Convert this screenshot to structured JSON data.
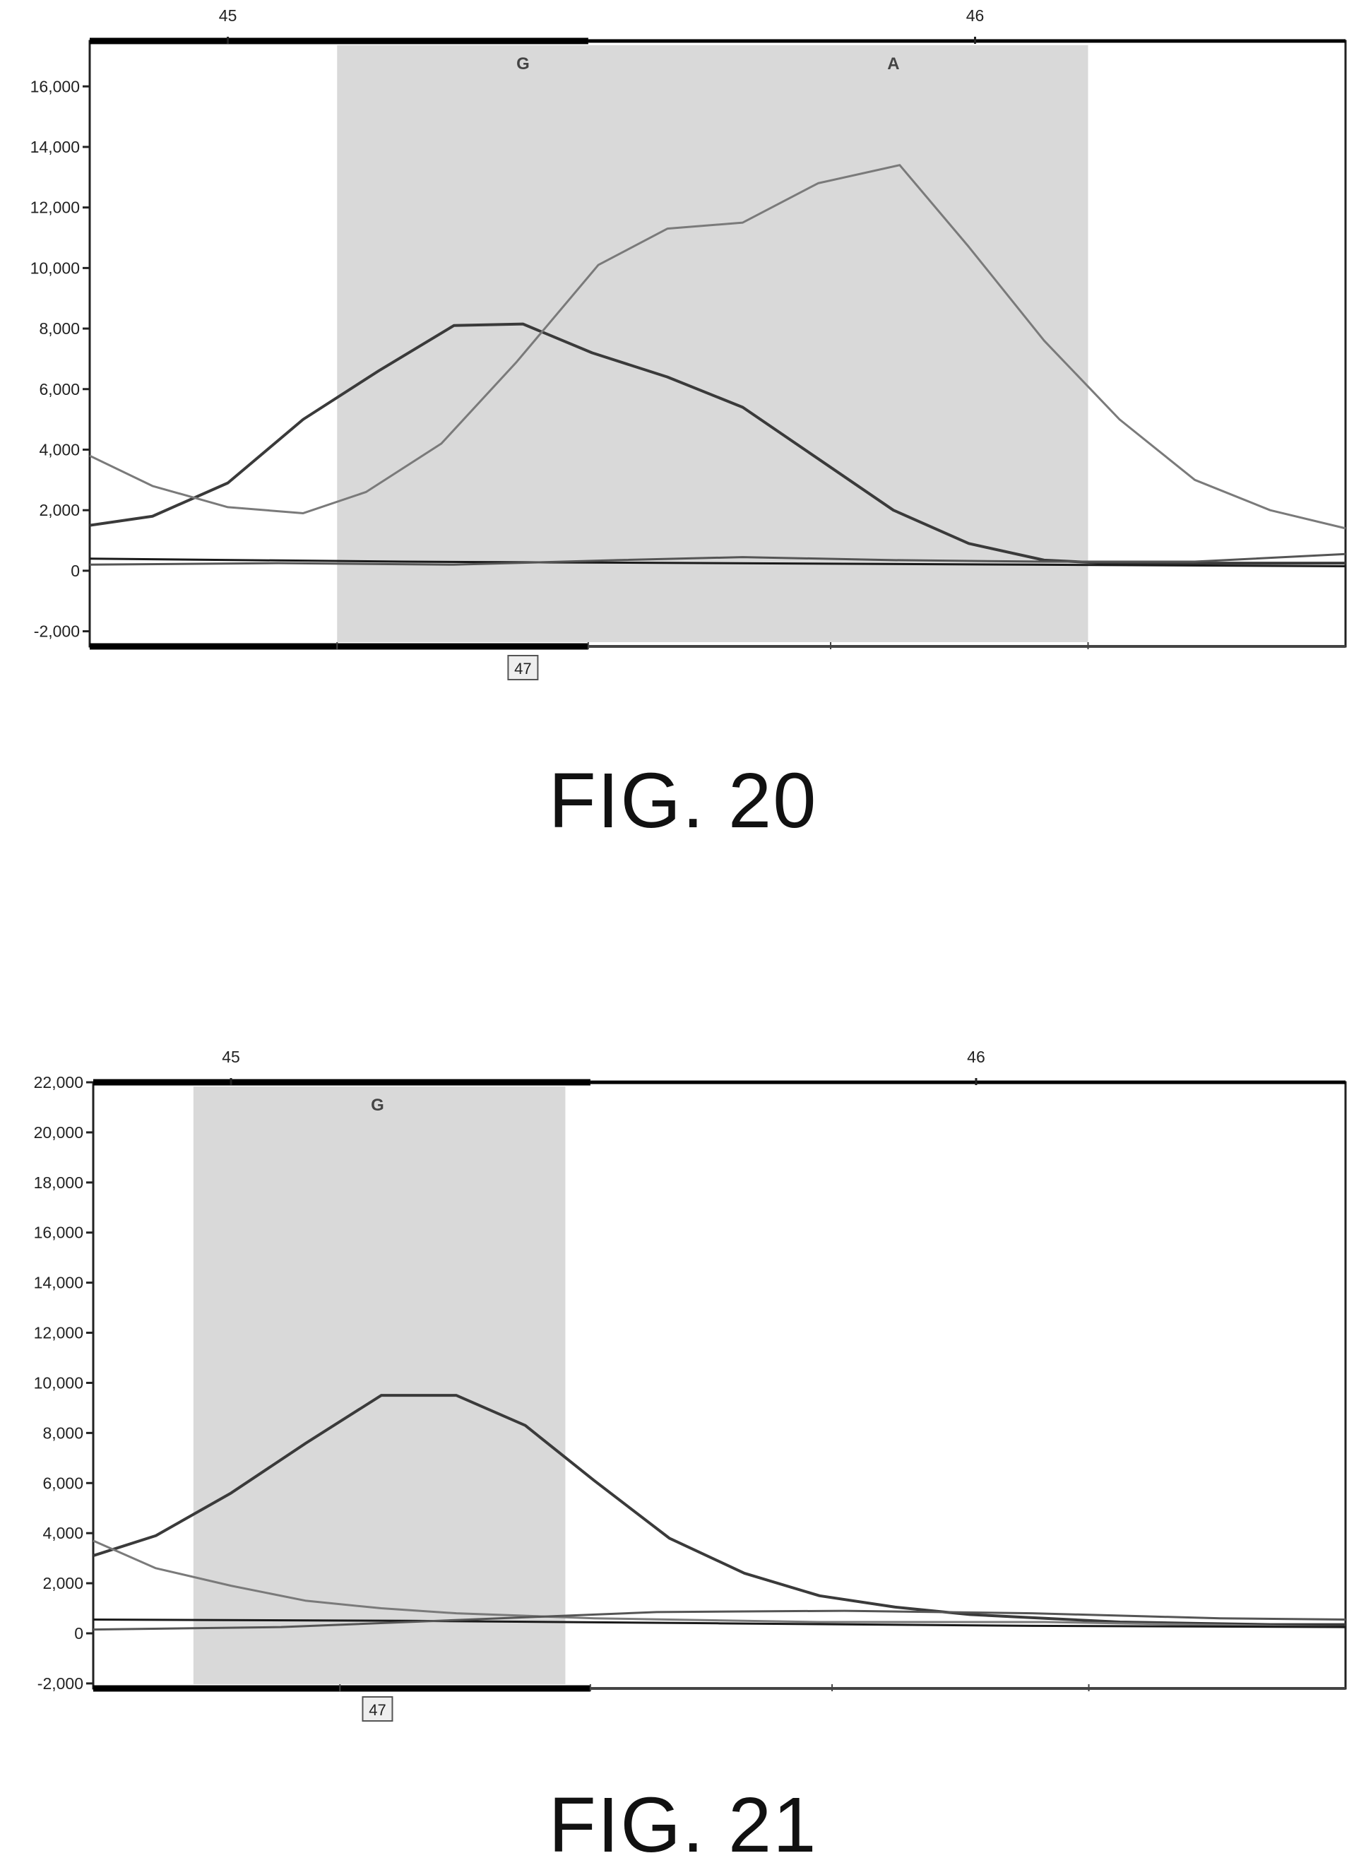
{
  "chart_data": [
    {
      "type": "line",
      "title": "",
      "xlabel": "",
      "ylabel": "",
      "caption": "FIG. 20",
      "ylim": [
        -2500,
        17500
      ],
      "xlim": [
        0,
        1
      ],
      "yticks": [
        -2000,
        0,
        2000,
        4000,
        6000,
        8000,
        10000,
        12000,
        14000,
        16000
      ],
      "ytick_labels": [
        "-2,000",
        "0",
        "2,000",
        "4,000",
        "6,000",
        "8,000",
        "10,000",
        "12,000",
        "14,000",
        "16,000"
      ],
      "top_positions": [
        {
          "x": 0.11,
          "label": "45"
        },
        {
          "x": 0.705,
          "label": "46"
        }
      ],
      "base_calls": [
        {
          "x": 0.345,
          "label": "G"
        },
        {
          "x": 0.64,
          "label": "A"
        }
      ],
      "bottom_marker": {
        "x": 0.345,
        "label": "47"
      },
      "shaded_region": [
        0.197,
        0.795
      ],
      "grid": false,
      "series": [
        {
          "color": "#3a3a3a",
          "width": 4,
          "x": [
            0,
            0.05,
            0.11,
            0.17,
            0.23,
            0.29,
            0.345,
            0.4,
            0.46,
            0.52,
            0.58,
            0.64,
            0.7,
            0.76,
            0.81,
            0.87,
            0.93,
            1.0
          ],
          "y": [
            1500,
            1800,
            2900,
            5000,
            6600,
            8100,
            8150,
            7200,
            6400,
            5400,
            3700,
            2000,
            900,
            350,
            250,
            250,
            250,
            250
          ]
        },
        {
          "color": "#7a7a7a",
          "width": 3,
          "x": [
            0,
            0.05,
            0.11,
            0.17,
            0.22,
            0.28,
            0.34,
            0.405,
            0.46,
            0.52,
            0.58,
            0.645,
            0.7,
            0.76,
            0.82,
            0.88,
            0.94,
            1.0
          ],
          "y": [
            3800,
            2800,
            2100,
            1900,
            2600,
            4200,
            6900,
            10100,
            11300,
            11500,
            12800,
            13400,
            10700,
            7600,
            5000,
            3000,
            2000,
            1400
          ]
        },
        {
          "color": "#1a1a1a",
          "width": 3,
          "x": [
            0,
            0.25,
            0.5,
            0.75,
            1.0
          ],
          "y": [
            400,
            300,
            250,
            200,
            150
          ]
        },
        {
          "color": "#555555",
          "width": 3,
          "x": [
            0,
            0.15,
            0.29,
            0.42,
            0.52,
            0.64,
            0.76,
            0.88,
            1.0
          ],
          "y": [
            200,
            250,
            200,
            350,
            450,
            350,
            300,
            300,
            550
          ]
        }
      ]
    },
    {
      "type": "line",
      "title": "",
      "xlabel": "",
      "ylabel": "",
      "caption": "FIG. 21",
      "ylim": [
        -2200,
        22000
      ],
      "xlim": [
        0,
        1
      ],
      "yticks": [
        -2000,
        0,
        2000,
        4000,
        6000,
        8000,
        10000,
        12000,
        14000,
        16000,
        18000,
        20000,
        22000
      ],
      "ytick_labels": [
        "-2,000",
        "0",
        "2,000",
        "4,000",
        "6,000",
        "8,000",
        "10,000",
        "12,000",
        "14,000",
        "16,000",
        "18,000",
        "20,000",
        "22,000"
      ],
      "top_positions": [
        {
          "x": 0.11,
          "label": "45"
        },
        {
          "x": 0.705,
          "label": "46"
        }
      ],
      "base_calls": [
        {
          "x": 0.227,
          "label": "G"
        }
      ],
      "bottom_marker": {
        "x": 0.227,
        "label": "47"
      },
      "shaded_region": [
        0.08,
        0.377
      ],
      "grid": false,
      "series": [
        {
          "color": "#3a3a3a",
          "width": 4,
          "x": [
            0,
            0.05,
            0.11,
            0.17,
            0.23,
            0.29,
            0.345,
            0.4,
            0.46,
            0.52,
            0.58,
            0.64,
            0.7,
            0.76,
            0.82,
            0.88,
            0.94,
            1.0
          ],
          "y": [
            3100,
            3900,
            5600,
            7600,
            9500,
            9500,
            8300,
            6100,
            3800,
            2400,
            1500,
            1050,
            750,
            600,
            450,
            400,
            350,
            350
          ]
        },
        {
          "color": "#7a7a7a",
          "width": 3,
          "x": [
            0,
            0.05,
            0.11,
            0.17,
            0.23,
            0.29,
            0.345,
            0.4,
            0.46,
            0.52,
            0.58,
            0.64,
            0.7,
            0.76,
            0.82,
            0.88,
            0.94,
            1.0
          ],
          "y": [
            3700,
            2600,
            1900,
            1300,
            1000,
            800,
            700,
            600,
            550,
            500,
            450,
            450,
            450,
            450,
            400,
            350,
            300,
            250
          ]
        },
        {
          "color": "#1a1a1a",
          "width": 3,
          "x": [
            0,
            0.25,
            0.5,
            0.75,
            1.0
          ],
          "y": [
            550,
            500,
            400,
            300,
            250
          ]
        },
        {
          "color": "#555555",
          "width": 3,
          "x": [
            0,
            0.15,
            0.3,
            0.45,
            0.6,
            0.75,
            0.9,
            1.0
          ],
          "y": [
            150,
            250,
            550,
            850,
            900,
            800,
            600,
            550
          ]
        }
      ]
    }
  ]
}
